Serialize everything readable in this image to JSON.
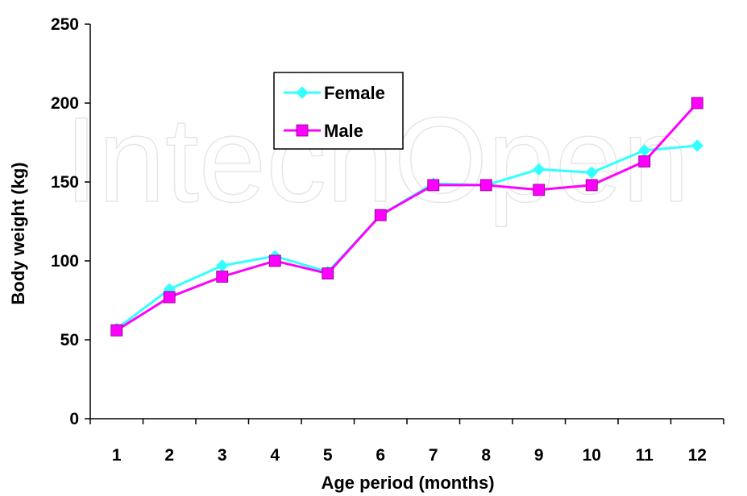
{
  "watermark": "IntechOpen",
  "chart_data": {
    "type": "line",
    "categories": [
      "1",
      "2",
      "3",
      "4",
      "5",
      "6",
      "7",
      "8",
      "9",
      "10",
      "11",
      "12"
    ],
    "xlabel": "Age period (months)",
    "ylabel": "Body weight (kg)",
    "ylim": [
      0,
      250
    ],
    "yticks": [
      0,
      50,
      100,
      150,
      200,
      250
    ],
    "grid": false,
    "legend": "upper-center",
    "series": [
      {
        "name": "Female",
        "marker": "diamond",
        "color": "#33FFFF",
        "values": [
          57,
          82,
          97,
          103,
          93,
          129,
          149,
          148,
          158,
          156,
          170,
          173
        ]
      },
      {
        "name": "Male",
        "marker": "square",
        "color": "#FF00FF",
        "values": [
          56,
          77,
          90,
          100,
          92,
          129,
          148,
          148,
          145,
          148,
          163,
          200
        ]
      }
    ]
  }
}
